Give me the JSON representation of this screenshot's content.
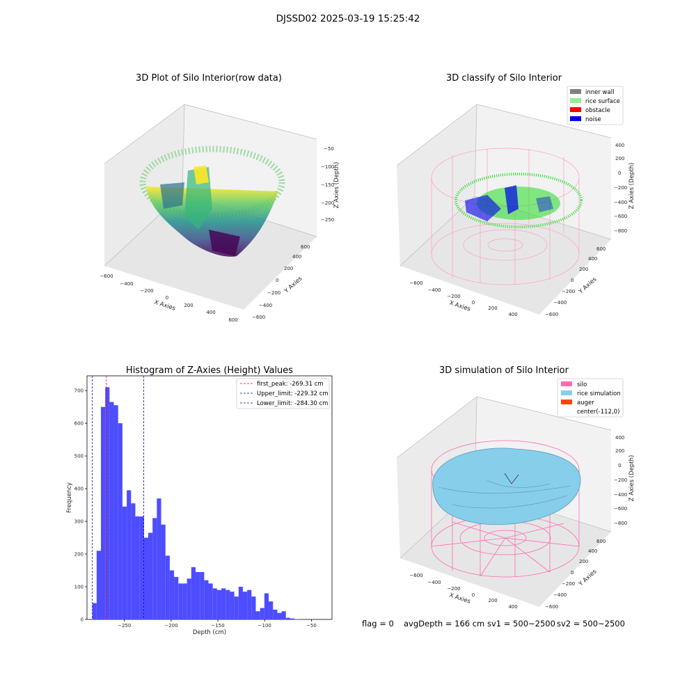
{
  "suptitle": "DJSSD02 2025-03-19 15:25:42",
  "status": {
    "flag": "flag = 0",
    "avg_depth": "avgDepth = 166 cm",
    "sv1": "sv1 = 500~2500",
    "sv2": "sv2 = 500~2500"
  },
  "colors": {
    "inner_wall": "#808080",
    "rice_surface": "#90ee90",
    "obstacle": "#ff0000",
    "noise": "#0000ff",
    "silo": "#ff69b4",
    "rice_simulation": "#87ceeb",
    "auger": "#ff4500",
    "hist_bar": "#4d4dff"
  },
  "chart_data": [
    {
      "type": "scatter",
      "title": "3D Plot of Silo Interior(row data)",
      "xlabel": "X Axies",
      "ylabel": "Y Axies",
      "zlabel": "Z Axies (Depth)",
      "x_ticks": [
        "−600",
        "−400",
        "−200",
        "0",
        "200",
        "400",
        "600"
      ],
      "y_ticks": [
        "−600",
        "−400",
        "−200",
        "0",
        "200",
        "400",
        "600"
      ],
      "z_ticks": [
        "−50",
        "−100",
        "−150",
        "−200",
        "−250"
      ],
      "colormap": "viridis"
    },
    {
      "type": "scatter",
      "title": "3D classify of Silo Interior",
      "xlabel": "X Axies",
      "ylabel": "Y Axies",
      "zlabel": "Z Axies (Depth)",
      "x_ticks": [
        "−600",
        "−400",
        "−200",
        "0",
        "200",
        "400"
      ],
      "y_ticks": [
        "−600",
        "−400",
        "−200",
        "0",
        "200",
        "400",
        "600"
      ],
      "z_ticks": [
        "400",
        "200",
        "0",
        "−200",
        "−400",
        "−600",
        "−800"
      ],
      "legend": [
        "inner wall",
        "rice surface",
        "obstacle",
        "noise"
      ],
      "legend_position": "top-right"
    },
    {
      "type": "bar",
      "title": "Histogram of Z-Axies (Height) Values",
      "xlabel": "Depth (cm)",
      "ylabel": "Frequency",
      "xlim": [
        -290,
        -28
      ],
      "ylim": [
        0,
        745
      ],
      "x_ticks": [
        -250,
        -200,
        -150,
        -100,
        -50
      ],
      "x_tick_labels": [
        "−250",
        "−200",
        "−150",
        "−100",
        "−50"
      ],
      "y_ticks": [
        0,
        100,
        200,
        300,
        400,
        500,
        600,
        700
      ],
      "bin_start": -284.3,
      "bin_width": 4.6,
      "values": [
        50,
        210,
        650,
        710,
        665,
        655,
        600,
        345,
        395,
        355,
        315,
        315,
        250,
        265,
        310,
        370,
        290,
        195,
        150,
        130,
        110,
        110,
        125,
        160,
        145,
        145,
        120,
        110,
        95,
        90,
        95,
        90,
        85,
        70,
        100,
        85,
        90,
        70,
        25,
        35,
        80,
        55,
        30,
        20,
        25,
        5,
        3,
        1
      ],
      "lines": [
        {
          "label": "first_peak: -269.31 cm",
          "x": -269.31,
          "color": "#ff0000"
        },
        {
          "label": "Upper_limit: -229.32 cm",
          "x": -229.32,
          "color": "#0000cc"
        },
        {
          "label": "Lower_limit: -284.30 cm",
          "x": -284.3,
          "color": "#0000cc"
        }
      ],
      "legend_position": "top-right"
    },
    {
      "type": "scatter",
      "title": "3D simulation of Silo Interior",
      "xlabel": "X Axies",
      "ylabel": "Y Axies",
      "zlabel": "Z Axies (Depth)",
      "x_ticks": [
        "−600",
        "−400",
        "−200",
        "0",
        "200",
        "400"
      ],
      "y_ticks": [
        "−600",
        "−400",
        "−200",
        "0",
        "200",
        "400",
        "600"
      ],
      "z_ticks": [
        "400",
        "200",
        "0",
        "−200",
        "−400",
        "−600",
        "−800"
      ],
      "legend": [
        "silo",
        "rice simulation",
        "auger",
        "center(-112,0)"
      ],
      "legend_position": "top-right"
    }
  ]
}
